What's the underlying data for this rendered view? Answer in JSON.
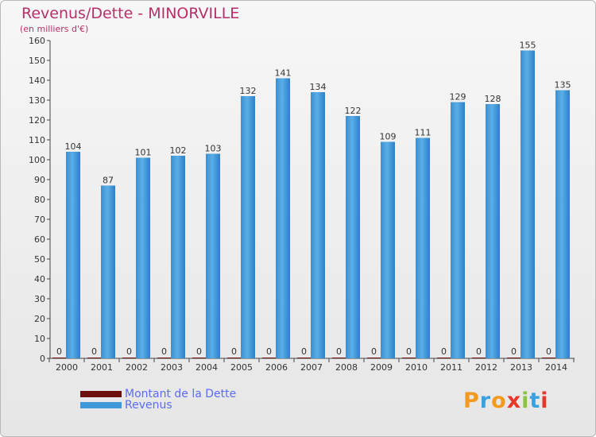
{
  "title": "Revenus/Dette - MINORVILLE",
  "subtitle": "(en milliers d'€)",
  "legend": {
    "debt_label": "Montant de la Dette",
    "revenue_label": "Revenus"
  },
  "logo": {
    "text": "Proxiti",
    "colors": [
      "#f39a1e",
      "#3aa0e0",
      "#f39a1e",
      "#e5372b",
      "#8ac43f",
      "#3aa0e0",
      "#e5372b"
    ]
  },
  "colors": {
    "revenue": "#3f98d8",
    "debt": "#6e0f0f",
    "title": "#b5306a",
    "legend_text": "#5a6cf0"
  },
  "chart_data": {
    "type": "bar",
    "categories": [
      "2000",
      "2001",
      "2002",
      "2003",
      "2004",
      "2005",
      "2006",
      "2007",
      "2008",
      "2009",
      "2010",
      "2011",
      "2012",
      "2013",
      "2014"
    ],
    "series": [
      {
        "name": "Montant de la Dette",
        "values": [
          0,
          0,
          0,
          0,
          0,
          0,
          0,
          0,
          0,
          0,
          0,
          0,
          0,
          0,
          0
        ]
      },
      {
        "name": "Revenus",
        "values": [
          104,
          87,
          101,
          102,
          103,
          132,
          141,
          134,
          122,
          109,
          111,
          129,
          128,
          155,
          135
        ]
      }
    ],
    "ylim": [
      0,
      160
    ],
    "yticks": [
      0,
      10,
      20,
      30,
      40,
      50,
      60,
      70,
      80,
      90,
      100,
      110,
      120,
      130,
      140,
      150,
      160
    ],
    "grid": false
  }
}
